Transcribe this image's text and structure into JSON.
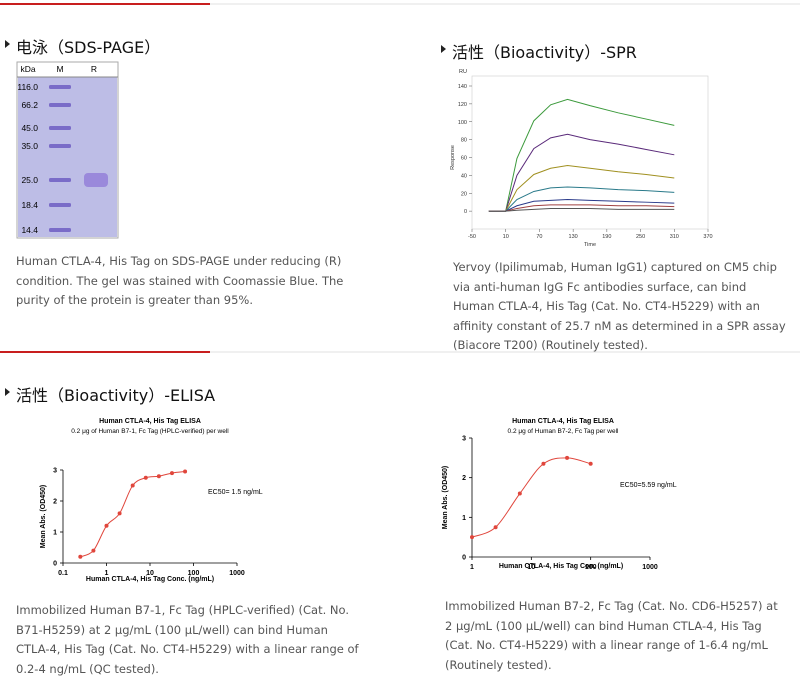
{
  "sds_page": {
    "title": "电泳（SDS-PAGE）",
    "gel": {
      "unit": "kDa",
      "lanes": [
        "M",
        "R"
      ],
      "markers": [
        "116.0",
        "66.2",
        "45.0",
        "35.0",
        "25.0",
        "18.4",
        "14.4"
      ]
    },
    "caption": "Human CTLA-4, His Tag on SDS-PAGE under reducing (R) condition. The gel was stained with Coomassie Blue. The purity of the protein is greater than 95%."
  },
  "spr": {
    "title": "活性（Bioactivity）-SPR",
    "chart": {
      "type": "line",
      "y_unit": "RU",
      "xlabel": "Time",
      "ylabel": "Response",
      "x": [
        -20,
        10,
        30,
        60,
        90,
        120,
        160,
        210,
        260,
        310
      ],
      "xlim": [
        -50,
        370
      ],
      "xticks": [
        -50,
        10,
        70,
        130,
        190,
        250,
        310,
        370
      ],
      "ylim": [
        -20,
        140
      ],
      "yticks": [
        0,
        20,
        40,
        60,
        80,
        100,
        120,
        140
      ],
      "series": [
        {
          "color": "#3c9a3c",
          "values": [
            0,
            0,
            59,
            101,
            119,
            125,
            118,
            110,
            103,
            96
          ]
        },
        {
          "color": "#5a2a7a",
          "values": [
            0,
            0,
            40,
            70,
            82,
            86,
            80,
            75,
            69,
            63
          ]
        },
        {
          "color": "#a09020",
          "values": [
            0,
            0,
            24,
            41,
            48,
            51,
            48,
            44,
            41,
            37
          ]
        },
        {
          "color": "#2a7a8a",
          "values": [
            0,
            0,
            13,
            22,
            26,
            27,
            26,
            24,
            23,
            21
          ]
        },
        {
          "color": "#2a3a8a",
          "values": [
            0,
            0,
            6,
            11,
            12,
            13,
            12,
            11,
            10,
            9
          ]
        },
        {
          "color": "#a04040",
          "values": [
            0,
            0,
            3,
            6,
            7,
            7,
            7,
            6,
            6,
            5
          ]
        },
        {
          "color": "#555555",
          "values": [
            0,
            0,
            1,
            2,
            3,
            3,
            3,
            2,
            2,
            2
          ]
        }
      ]
    },
    "caption": "Yervoy (Ipilimumab, Human IgG1) captured on CM5 chip via anti-human IgG Fc antibodies surface, can bind Human CTLA-4, His Tag (Cat. No. CT4-H5229) with an affinity constant of 25.7 nM as determined in a SPR assay (Biacore T200) (Routinely tested)."
  },
  "elisa": {
    "title": "活性（Bioactivity）-ELISA",
    "charts": [
      {
        "type": "scatter",
        "title": "Human CTLA-4, His Tag ELISA",
        "subtitle": "0.2 μg of Human B7-1, Fc Tag (HPLC-verified) per well",
        "xlabel": "Human CTLA-4, His Tag Conc. (ng/mL)",
        "ylabel": "Mean Abs. (OD450)",
        "annotation": "EC50= 1.5 ng/mL",
        "log_x": true,
        "xlim": [
          0.1,
          1000
        ],
        "xticks": [
          0.1,
          1,
          10,
          100,
          1000
        ],
        "ylim": [
          0,
          3
        ],
        "yticks": [
          0,
          1,
          2,
          3
        ],
        "color": "#e0463c",
        "x": [
          0.25,
          0.5,
          1,
          2,
          4,
          8,
          16,
          32,
          64
        ],
        "values": [
          0.2,
          0.4,
          1.2,
          1.6,
          2.5,
          2.75,
          2.8,
          2.9,
          2.95
        ]
      },
      {
        "type": "scatter",
        "title": "Human CTLA-4, His Tag ELISA",
        "subtitle": "0.2 μg of Human B7-2, Fc Tag per well",
        "xlabel": "Human CTLA-4, His Tag Con. (ng/mL)",
        "ylabel": "Mean Abs. (OD450)",
        "annotation": "EC50=5.59 ng/mL",
        "log_x": true,
        "xlim": [
          1,
          1000
        ],
        "xticks": [
          1,
          10,
          100,
          1000
        ],
        "ylim": [
          0,
          3
        ],
        "yticks": [
          0,
          1,
          2,
          3
        ],
        "color": "#e0463c",
        "x": [
          1,
          2.5,
          6.4,
          16,
          40,
          100
        ],
        "values": [
          0.5,
          0.75,
          1.6,
          2.35,
          2.5,
          2.35
        ]
      }
    ],
    "captions": [
      "Immobilized Human B7-1, Fc Tag (HPLC-verified) (Cat. No. B71-H5259) at 2 μg/mL (100 μL/well) can bind Human CTLA-4, His Tag (Cat. No. CT4-H5229) with a linear range of 0.2-4 ng/mL (QC tested).",
      "Immobilized Human B7-2, Fc Tag (Cat. No. CD6-H5257) at 2 μg/mL (100 μL/well) can bind Human CTLA-4, His Tag (Cat. No. CT4-H5229) with a linear range of 1-6.4 ng/mL (Routinely tested)."
    ]
  }
}
